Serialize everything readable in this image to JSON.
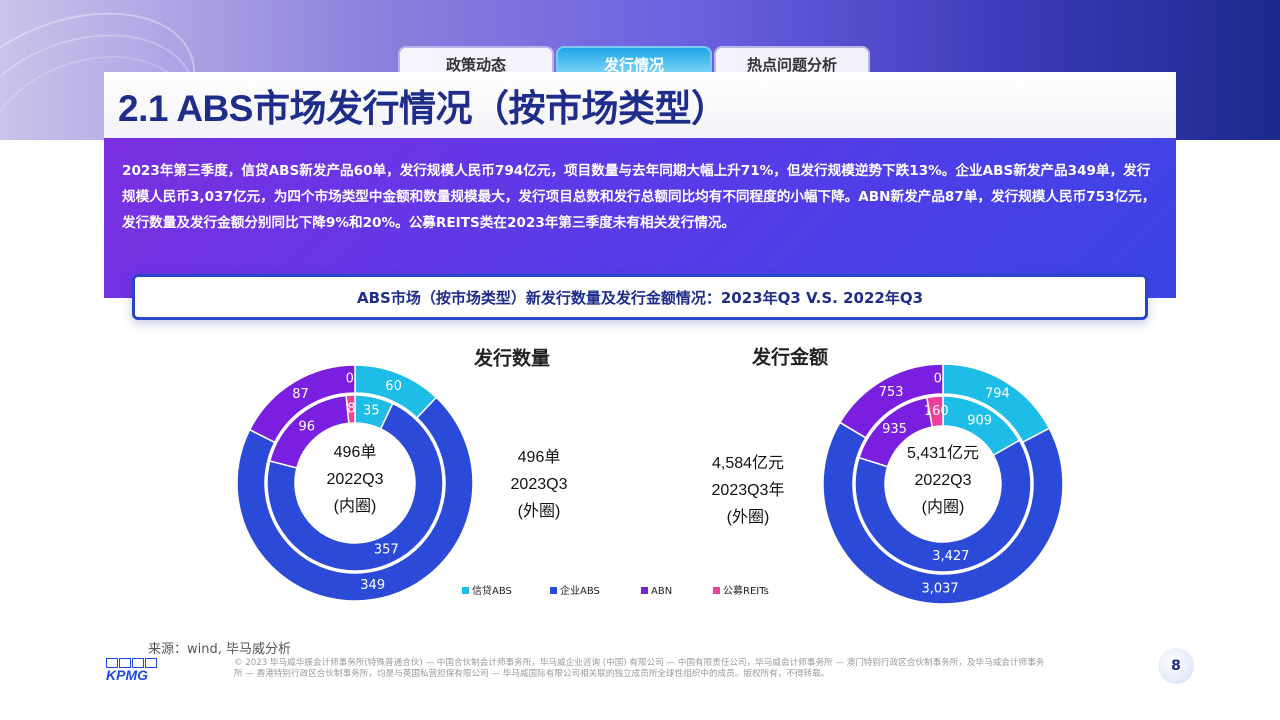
{
  "tabs": [
    {
      "label": "政策动态"
    },
    {
      "label": "发行情况"
    },
    {
      "label": "热点问题分析"
    }
  ],
  "page_title": "2.1 ABS市场发行情况（按市场类型）",
  "summary": "2023年第三季度，信贷ABS新发产品60单，发行规模人民币794亿元，项目数量与去年同期大幅上升71%，但发行规模逆势下跌13%。企业ABS新发产品349单，发行规模人民币3,037亿元，为四个市场类型中金额和数量规模最大，发行项目总数和发行总额同比均有不同程度的小幅下降。ABN新发产品87单，发行规模人民币753亿元，发行数量及发行金额分别同比下降9%和20%。公募REITS类在2023年第三季度未有相关发行情况。",
  "chart_section_title": "ABS市场（按市场类型）新发行数量及发行金额情况：2023年Q3 V.S. 2022年Q3",
  "colors": {
    "xindai_abs": "#1ebde8",
    "qiye_abs": "#2b4ad8",
    "abn": "#7a1fe0",
    "reits": "#f0409a"
  },
  "chart_data": [
    {
      "type": "pie",
      "title": "发行数量",
      "categories": [
        "信贷ABS",
        "企业ABS",
        "ABN",
        "公募REITs"
      ],
      "series": [
        {
          "name": "2023Q3",
          "ring": "outer",
          "values": [
            60,
            349,
            87,
            0
          ],
          "labels": [
            "60",
            "349",
            "87",
            "0"
          ]
        },
        {
          "name": "2022Q3",
          "ring": "inner",
          "values": [
            35,
            357,
            96,
            8
          ],
          "labels": [
            "35",
            "357",
            "96",
            "8"
          ]
        }
      ],
      "center_label": [
        "496单",
        "2022Q3",
        "(内圈)"
      ],
      "side_label": [
        "496单",
        "2023Q3",
        "(外圈)"
      ]
    },
    {
      "type": "pie",
      "title": "发行金额",
      "categories": [
        "信贷ABS",
        "企业ABS",
        "ABN",
        "公募REITs"
      ],
      "series": [
        {
          "name": "2023Q3",
          "ring": "outer",
          "values": [
            794,
            3037,
            753,
            0
          ],
          "labels": [
            "794",
            "3,037",
            "753",
            "0"
          ]
        },
        {
          "name": "2022Q3",
          "ring": "inner",
          "values": [
            909,
            3427,
            935,
            160
          ],
          "labels": [
            "909",
            "3,427",
            "935",
            "160"
          ]
        }
      ],
      "center_label": [
        "5,431亿元",
        "2022Q3",
        "(内圈)"
      ],
      "side_label": [
        "4,584亿元",
        "2023Q3年",
        "(外圈)"
      ]
    }
  ],
  "legend": [
    {
      "name": "信贷ABS",
      "color": "#1ebde8"
    },
    {
      "name": "企业ABS",
      "color": "#2b4ad8"
    },
    {
      "name": "ABN",
      "color": "#7a1fe0"
    },
    {
      "name": "公募REITs",
      "color": "#f0409a"
    }
  ],
  "source": "来源：wind, 毕马威分析",
  "logo_text": "KPMG",
  "footer_note": "© 2023 毕马威华振会计师事务所(特殊普通合伙) — 中国合伙制会计师事务所，毕马威企业咨询 (中国) 有限公司 — 中国有限责任公司，毕马威会计师事务所 — 澳门特别行政区合伙制事务所，及毕马威会计师事务所 — 香港特别行政区合伙制事务所，均是与英国私营担保有限公司 — 毕马威国际有限公司相关联的独立成员所全球性组织中的成员。版权所有，不得转载。",
  "page_number": "8"
}
